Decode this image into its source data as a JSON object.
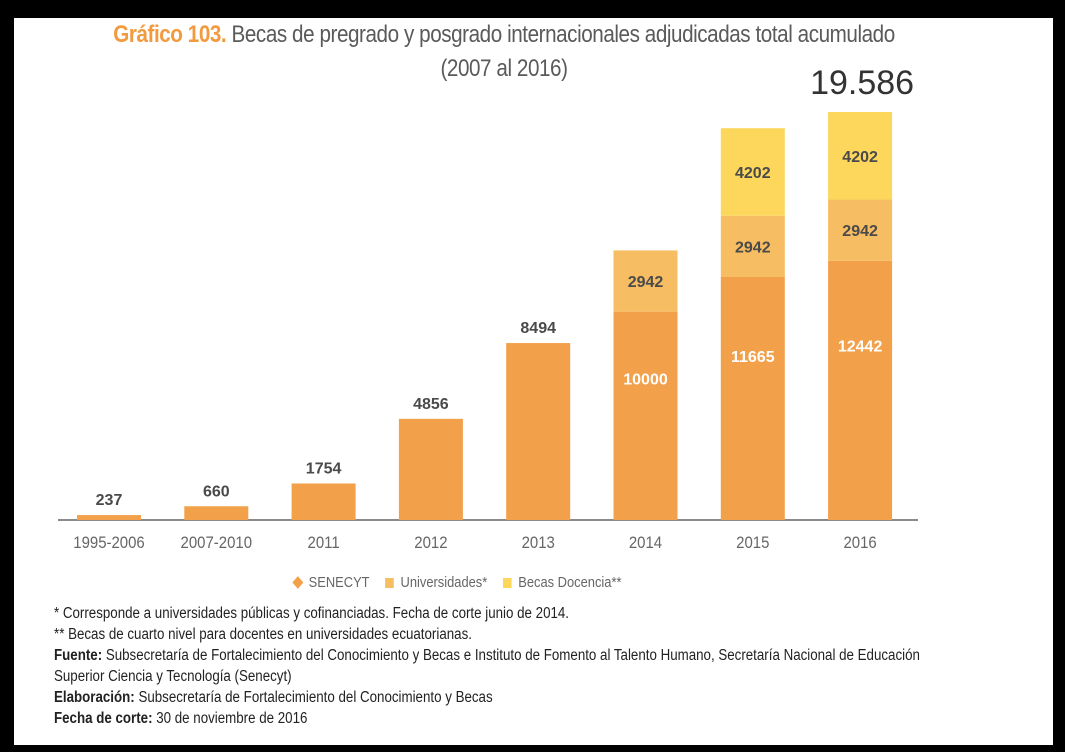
{
  "chart_data": {
    "type": "bar",
    "stacked": true,
    "title_label": "Gráfico 103.",
    "title": "Becas de pregrado y posgrado internacionales adjudicadas total acumulado",
    "subtitle": "(2007 al 2016)",
    "categories": [
      "1995-2006",
      "2007-2010",
      "2011",
      "2012",
      "2013",
      "2014",
      "2015",
      "2016"
    ],
    "series": [
      {
        "name": "SENECYT",
        "color": "#f3a04a",
        "values": [
          237,
          660,
          1754,
          4856,
          8494,
          10000,
          11665,
          12442
        ],
        "labels": [
          "237",
          "660",
          "1754",
          "4856",
          "8494",
          "10000",
          "11665",
          "12442"
        ]
      },
      {
        "name": "Universidades*",
        "color": "#f7bd62",
        "values": [
          0,
          0,
          0,
          0,
          0,
          2942,
          2942,
          2942
        ],
        "labels": [
          "",
          "",
          "",
          "",
          "",
          "2942",
          "2942",
          "2942"
        ]
      },
      {
        "name": "Becas Docencia**",
        "color": "#fcd75c",
        "values": [
          0,
          0,
          0,
          0,
          0,
          0,
          4202,
          4202
        ],
        "labels": [
          "",
          "",
          "",
          "",
          "",
          "",
          "4202",
          "4202"
        ]
      }
    ],
    "total_label": "19.586",
    "ylim": [
      0,
      19586
    ],
    "grid": false,
    "legend_position": "bottom"
  },
  "notes": {
    "note1": "* Corresponde a universidades públicas y cofinanciadas. Fecha de corte junio de 2014.",
    "note2": "** Becas de cuarto nivel para docentes en universidades ecuatorianas.",
    "source_label": "Fuente:",
    "source_text": "Subsecretaría de Fortalecimiento del Conocimiento y Becas e Instituto de Fomento al Talento Humano, Secretaría Nacional de Educación",
    "source_text2": "Superior Ciencia y Tecnología (Senecyt)",
    "elab_label": "Elaboración:",
    "elab_text": "Subsecretaría de Fortalecimiento del Conocimiento y Becas",
    "cut_label": "Fecha de corte:",
    "cut_text": "30 de noviembre de 2016"
  }
}
